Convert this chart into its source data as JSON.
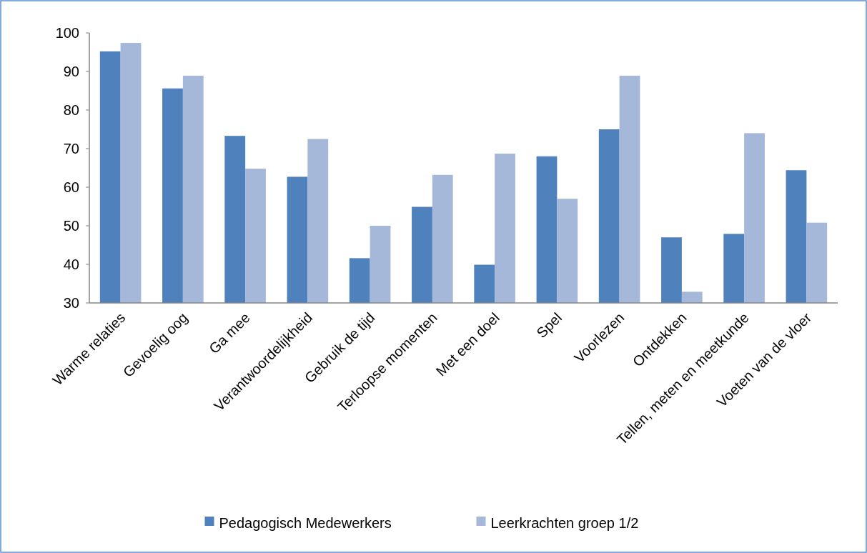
{
  "chart_data": {
    "type": "bar",
    "categories": [
      "Warme relaties",
      "Gevoelig oog",
      "Ga mee",
      "Verantwoordelijkheid",
      "Gebruik de tijd",
      "Terloopse momenten",
      "Met een doel",
      "Spel",
      "Voorlezen",
      "Ontdekken",
      "Tellen, meten en meetkunde",
      "Voeten van de vloer"
    ],
    "series": [
      {
        "name": "Pedagogisch Medewerkers",
        "color": "#4f81bd",
        "values": [
          95.2,
          85.6,
          73.3,
          62.7,
          41.6,
          54.9,
          39.9,
          68,
          75,
          47,
          47.9,
          64.4
        ]
      },
      {
        "name": "Leerkrachten groep 1/2",
        "color": "#a5b8da",
        "values": [
          97.4,
          88.9,
          64.8,
          72.5,
          50,
          63.2,
          68.7,
          57,
          88.9,
          32.9,
          74,
          50.8
        ]
      }
    ],
    "ylim": [
      30,
      100
    ],
    "yticks": [
      30,
      40,
      50,
      60,
      70,
      80,
      90,
      100
    ],
    "grid": false,
    "legend": "bottom"
  }
}
